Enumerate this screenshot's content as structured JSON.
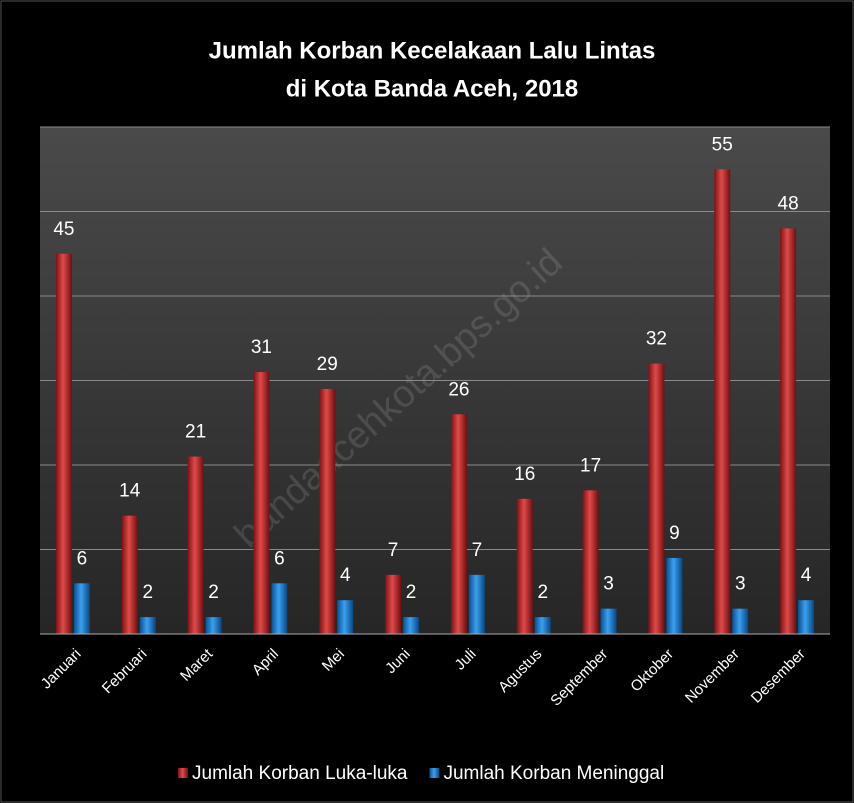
{
  "chart_data": {
    "type": "bar",
    "title": [
      "Jumlah Korban Kecelakaan Lalu Lintas",
      "di Kota Banda Aceh, 2018"
    ],
    "watermark": "bandaacehkota.bps.go.id",
    "categories": [
      "Januari",
      "Februari",
      "Maret",
      "April",
      "Mei",
      "Juni",
      "Juli",
      "Agustus",
      "September",
      "Oktober",
      "November",
      "Desember"
    ],
    "series": [
      {
        "name": "Jumlah Korban Luka-luka",
        "color": "#c0282a",
        "values": [
          45,
          14,
          21,
          31,
          29,
          7,
          26,
          16,
          17,
          32,
          55,
          48
        ]
      },
      {
        "name": "Jumlah Korban Meninggal",
        "color": "#1a7fd6",
        "values": [
          6,
          2,
          2,
          6,
          4,
          2,
          7,
          2,
          3,
          9,
          3,
          4
        ]
      }
    ],
    "ylim": [
      0,
      60
    ],
    "yticks": [
      0,
      10,
      20,
      30,
      40,
      50,
      60
    ],
    "grid": true,
    "legend": "bottom"
  }
}
